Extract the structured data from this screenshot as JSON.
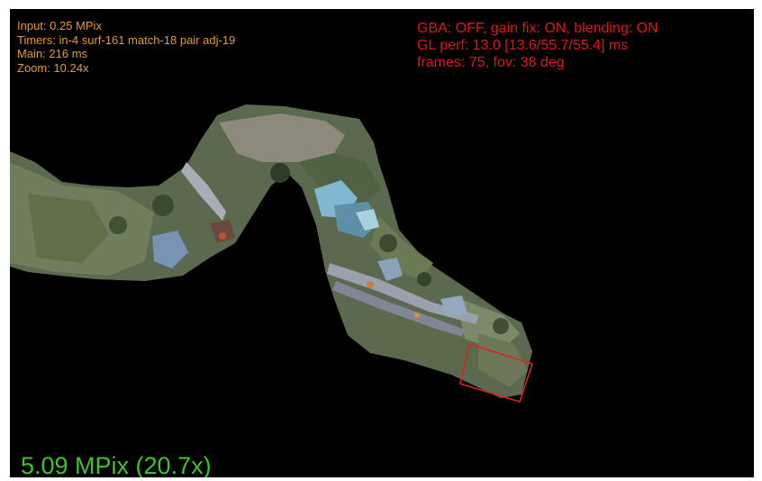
{
  "overlay_left": {
    "input": "Input: 0.25 MPix",
    "timers": "Timers: in-4 surf-161 match-18 pair adj-19",
    "main": "Main: 216 ms",
    "zoom": "Zoom: 10.24x"
  },
  "overlay_right": {
    "gba": "GBA: OFF, gain fix: ON, blending: ON",
    "gl_perf": "GL perf: 13.0 [13.6/55.7/55.4] ms",
    "frames": "frames: 75, fov: 38 deg"
  },
  "overlay_bottom": {
    "mpix": "5.09 MPix (20.7x)"
  },
  "colors": {
    "left_text": "#e39a2f",
    "right_text": "#e01616",
    "bottom_text": "#3fc22a",
    "background": "#000000",
    "current_frame_outline": "#e02020"
  }
}
